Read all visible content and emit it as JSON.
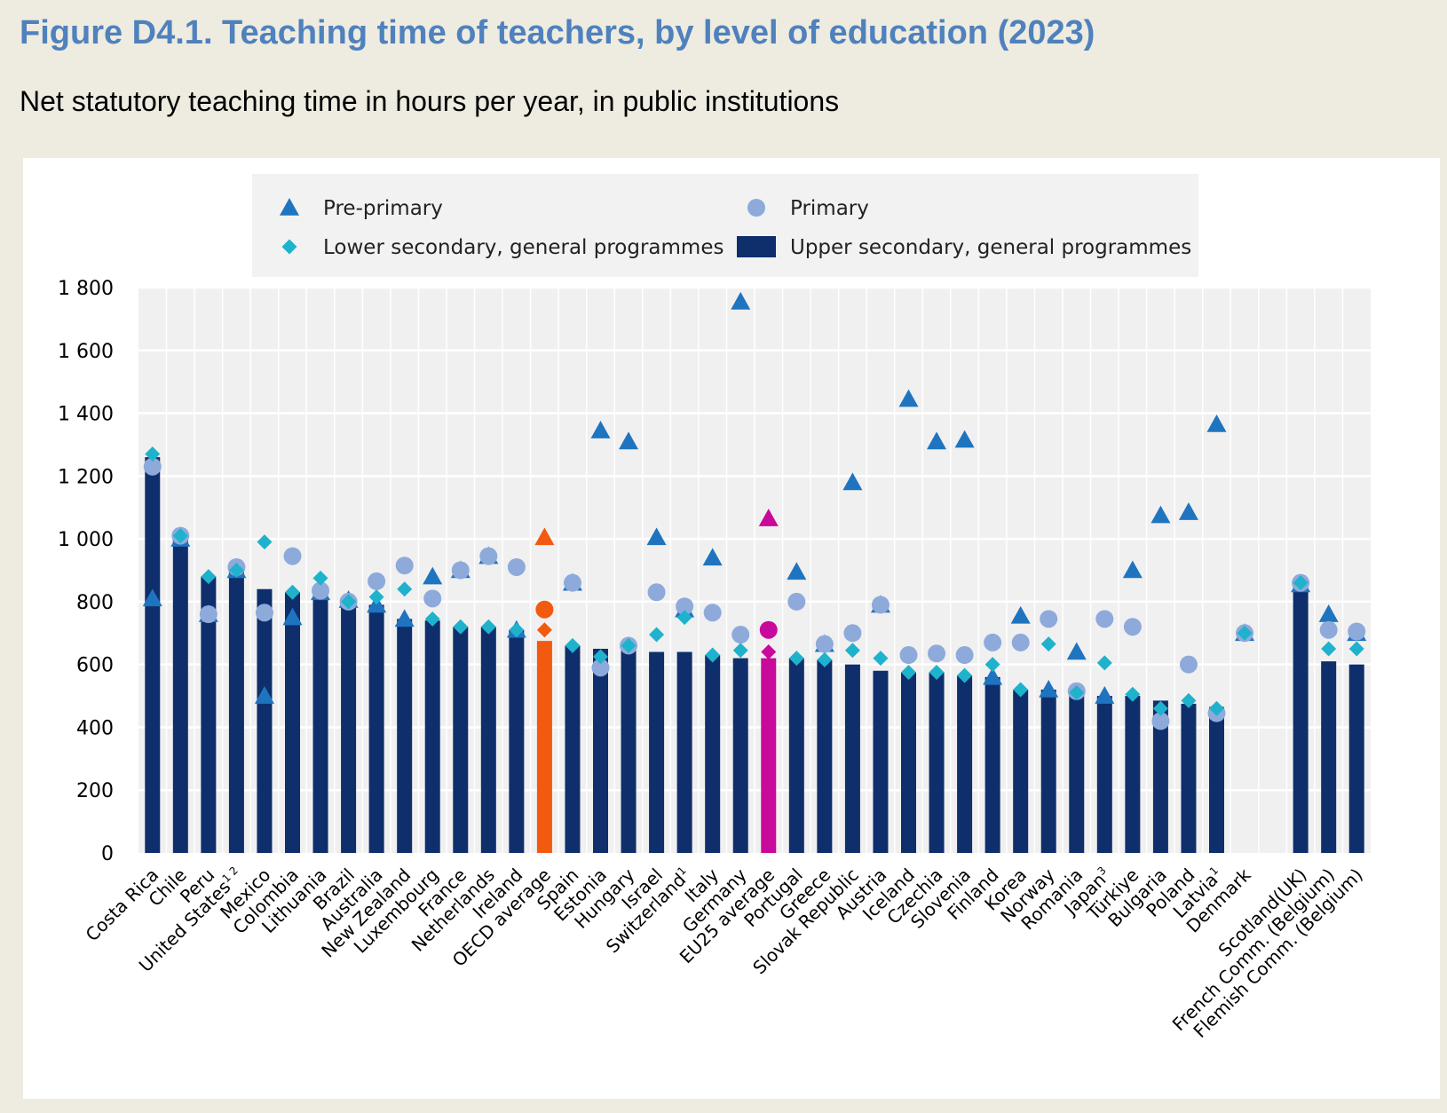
{
  "figure_title": "Figure D4.1. Teaching time of teachers, by level of education (2023)",
  "figure_subtitle": "Net statutory teaching time in hours per year, in public institutions",
  "colors": {
    "bar": "#0e2f6b",
    "oecd_bar": "#f25a0f",
    "eu_bar": "#c8099b",
    "preprimary": "#1f74c0",
    "primary": "#8eaadb",
    "lower_secondary": "#1fb2cd",
    "plot_bg": "#f0f0f0",
    "legend_bg": "#f2f2f2"
  },
  "chart_data": {
    "type": "bar",
    "title": "Figure D4.1. Teaching time of teachers, by level of education (2023)",
    "subtitle": "Net statutory teaching time in hours per year, in public institutions",
    "xlabel": "",
    "ylabel": "",
    "ylim": [
      0,
      1800
    ],
    "yticks": [
      0,
      200,
      400,
      600,
      800,
      1000,
      1200,
      1400,
      1600,
      1800
    ],
    "ytick_labels": [
      "0",
      "200",
      "400",
      "600",
      "800",
      "1 000",
      "1 200",
      "1 400",
      "1 600",
      "1 800"
    ],
    "grid": true,
    "legend_position": "top",
    "legend": [
      {
        "key": "preprimary",
        "label": "Pre-primary",
        "marker": "triangle"
      },
      {
        "key": "primary",
        "label": "Primary",
        "marker": "circle"
      },
      {
        "key": "lower_secondary",
        "label": "Lower secondary, general programmes",
        "marker": "diamond"
      },
      {
        "key": "upper_secondary",
        "label": "Upper secondary, general programmes",
        "marker": "bar"
      }
    ],
    "categories": [
      "Costa Rica",
      "Chile",
      "Peru",
      "United States",
      "Mexico",
      "Colombia",
      "Lithuania",
      "Brazil",
      "Australia",
      "New Zealand",
      "Luxembourg",
      "France",
      "Netherlands",
      "Ireland",
      "OECD average",
      "Spain",
      "Estonia",
      "Hungary",
      "Israel",
      "Switzerland",
      "Italy",
      "Germany",
      "EU25 average",
      "Portugal",
      "Greece",
      "Slovak Republic",
      "Austria",
      "Iceland",
      "Czechia",
      "Slovenia",
      "Finland",
      "Korea",
      "Norway",
      "Romania",
      "Japan",
      "Türkiye",
      "Bulgaria",
      "Poland",
      "Latvia",
      "Denmark",
      "",
      "Scotland(UK)",
      "French Comm. (Belgium)",
      "Flemish Comm. (Belgium)"
    ],
    "category_notes": [
      "",
      "",
      "",
      "1 2",
      "",
      "",
      "",
      "",
      "",
      "",
      "",
      "",
      "",
      "",
      "",
      "",
      "",
      "",
      "",
      "1",
      "",
      "",
      "",
      "",
      "",
      "",
      "",
      "",
      "",
      "",
      "",
      "",
      "",
      "",
      "3",
      "",
      "",
      "",
      "1",
      "",
      "",
      "",
      "",
      ""
    ],
    "highlight": {
      "OECD average": "oecd_bar",
      "EU25 average": "eu_bar"
    },
    "series": [
      {
        "name": "Upper secondary, general programmes",
        "key": "upper_secondary",
        "values": [
          1260,
          1010,
          880,
          900,
          840,
          830,
          830,
          800,
          790,
          745,
          740,
          720,
          720,
          710,
          675,
          660,
          650,
          645,
          640,
          640,
          630,
          620,
          620,
          620,
          615,
          600,
          580,
          575,
          575,
          565,
          560,
          520,
          520,
          510,
          500,
          500,
          485,
          475,
          465,
          null,
          null,
          860,
          610,
          600
        ]
      },
      {
        "name": "Pre-primary",
        "key": "preprimary",
        "values": [
          810,
          1000,
          760,
          900,
          500,
          750,
          830,
          805,
          790,
          745,
          880,
          900,
          945,
          710,
          1005,
          860,
          1345,
          1310,
          1005,
          775,
          940,
          1755,
          1065,
          895,
          665,
          1180,
          790,
          1445,
          1310,
          1315,
          560,
          755,
          520,
          640,
          500,
          900,
          1075,
          1085,
          1365,
          700,
          null,
          855,
          760,
          700
        ]
      },
      {
        "name": "Primary",
        "key": "primary",
        "values": [
          1230,
          1010,
          760,
          910,
          765,
          945,
          835,
          800,
          865,
          915,
          810,
          900,
          945,
          910,
          775,
          860,
          590,
          660,
          830,
          785,
          765,
          695,
          710,
          800,
          665,
          700,
          790,
          630,
          635,
          630,
          670,
          670,
          745,
          515,
          745,
          720,
          420,
          600,
          445,
          700,
          null,
          860,
          710,
          705
        ]
      },
      {
        "name": "Lower secondary, general programmes",
        "key": "lower_secondary",
        "values": [
          1270,
          1010,
          880,
          900,
          990,
          830,
          875,
          800,
          815,
          840,
          745,
          720,
          720,
          710,
          710,
          660,
          625,
          660,
          695,
          750,
          630,
          645,
          640,
          620,
          615,
          645,
          620,
          575,
          575,
          565,
          600,
          520,
          665,
          510,
          605,
          505,
          460,
          485,
          460,
          700,
          null,
          860,
          650,
          650
        ]
      }
    ]
  }
}
